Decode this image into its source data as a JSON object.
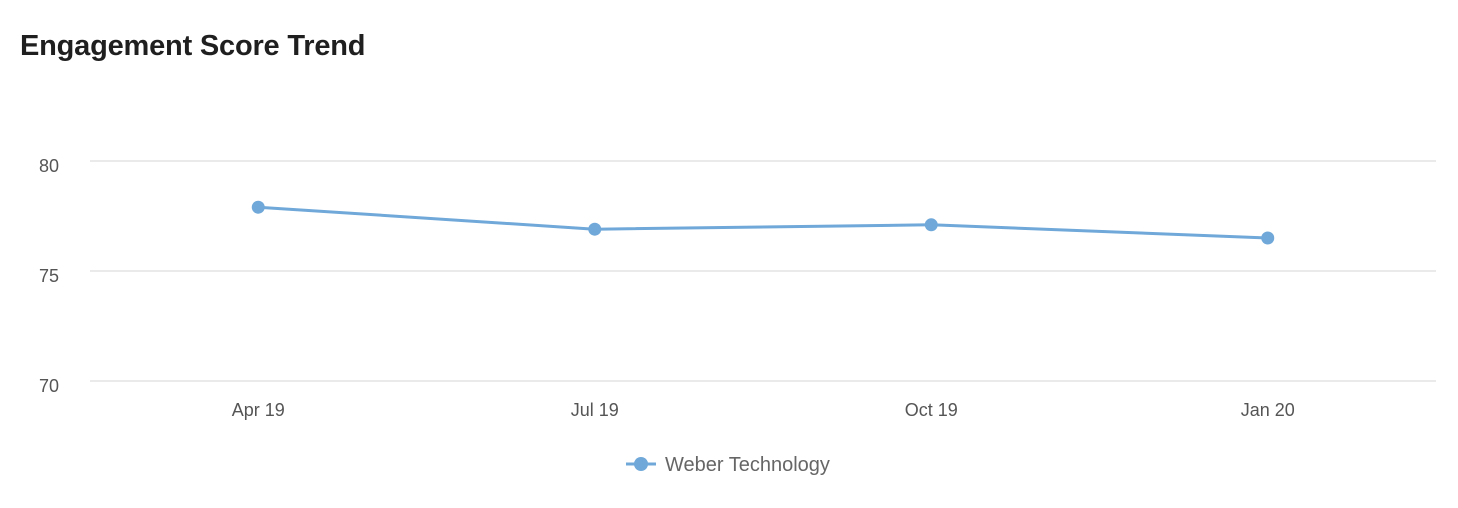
{
  "chart_data": {
    "type": "line",
    "title": "Engagement Score Trend",
    "xlabel": "",
    "ylabel": "",
    "categories": [
      "Apr 19",
      "Jul 19",
      "Oct 19",
      "Jan 20"
    ],
    "ylim": [
      70,
      80
    ],
    "yticks": [
      70,
      75,
      80
    ],
    "grid": true,
    "legend_position": "bottom-center",
    "series": [
      {
        "name": "Weber Technology",
        "color": "#6fa8d9",
        "values": [
          77.9,
          76.9,
          77.1,
          76.5
        ]
      }
    ]
  }
}
